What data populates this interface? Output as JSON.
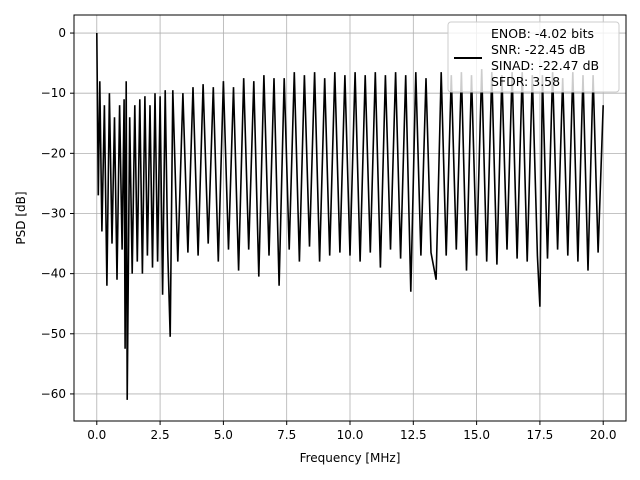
{
  "chart_data": {
    "type": "line",
    "xlabel": "Frequency [MHz]",
    "ylabel": "PSD [dB]",
    "xlim": [
      -0.9,
      20.9
    ],
    "ylim": [
      -64.5,
      3.0
    ],
    "xticks": [
      0.0,
      2.5,
      5.0,
      7.5,
      10.0,
      12.5,
      15.0,
      17.5,
      20.0
    ],
    "xtick_labels": [
      "0.0",
      "2.5",
      "5.0",
      "7.5",
      "10.0",
      "12.5",
      "15.0",
      "17.5",
      "20.0"
    ],
    "yticks": [
      0,
      -10,
      -20,
      -30,
      -40,
      -50,
      -60
    ],
    "ytick_labels": [
      "0",
      "−10",
      "−20",
      "−30",
      "−40",
      "−50",
      "−60"
    ],
    "grid": true,
    "legend_position": "top-right",
    "legend_lines": [
      "ENOB: -4.02 bits",
      "SNR: -22.45 dB",
      "SINAD: -22.47 dB",
      "SFDR: 3.58"
    ],
    "series": [
      {
        "color": "#000000",
        "x": [
          0.0,
          0.06,
          0.12,
          0.2,
          0.3,
          0.4,
          0.5,
          0.6,
          0.7,
          0.8,
          0.9,
          1.0,
          1.08,
          1.12,
          1.16,
          1.2,
          1.3,
          1.4,
          1.5,
          1.6,
          1.7,
          1.8,
          1.9,
          2.0,
          2.1,
          2.2,
          2.3,
          2.4,
          2.5,
          2.6,
          2.7,
          2.8,
          2.9,
          3.0,
          3.2,
          3.4,
          3.6,
          3.8,
          4.0,
          4.2,
          4.4,
          4.6,
          4.8,
          5.0,
          5.2,
          5.4,
          5.6,
          5.8,
          6.0,
          6.2,
          6.4,
          6.6,
          6.8,
          7.0,
          7.2,
          7.4,
          7.6,
          7.8,
          8.0,
          8.2,
          8.4,
          8.6,
          8.8,
          9.0,
          9.2,
          9.4,
          9.6,
          9.8,
          10.0,
          10.2,
          10.4,
          10.6,
          10.8,
          11.0,
          11.2,
          11.4,
          11.6,
          11.8,
          12.0,
          12.2,
          12.4,
          12.6,
          12.8,
          13.0,
          13.2,
          13.4,
          13.6,
          13.8,
          14.0,
          14.2,
          14.4,
          14.6,
          14.8,
          15.0,
          15.2,
          15.4,
          15.6,
          15.8,
          16.0,
          16.2,
          16.4,
          16.6,
          16.8,
          17.0,
          17.2,
          17.4,
          17.5,
          17.6,
          17.8,
          18.0,
          18.2,
          18.4,
          18.6,
          18.8,
          19.0,
          19.2,
          19.4,
          19.6,
          19.8,
          20.0
        ],
        "y": [
          0.0,
          -27.0,
          -8.0,
          -33.0,
          -12.0,
          -42.0,
          -10.0,
          -35.0,
          -14.0,
          -41.0,
          -12.0,
          -36.0,
          -11.0,
          -52.5,
          -8.0,
          -61.0,
          -14.0,
          -40.0,
          -12.0,
          -38.0,
          -11.0,
          -40.0,
          -10.5,
          -37.0,
          -12.0,
          -39.0,
          -10.0,
          -38.0,
          -10.5,
          -43.5,
          -9.5,
          -36.0,
          -50.5,
          -9.5,
          -38.0,
          -10.0,
          -36.5,
          -9.0,
          -37.0,
          -8.5,
          -35.0,
          -9.0,
          -38.0,
          -8.0,
          -36.0,
          -9.0,
          -39.5,
          -7.5,
          -36.0,
          -8.0,
          -40.5,
          -7.0,
          -37.0,
          -7.5,
          -42.0,
          -7.5,
          -36.0,
          -6.5,
          -38.0,
          -7.0,
          -35.5,
          -6.5,
          -38.0,
          -7.5,
          -37.0,
          -6.5,
          -36.5,
          -7.0,
          -37.0,
          -6.5,
          -38.0,
          -7.0,
          -36.5,
          -6.5,
          -39.0,
          -7.0,
          -36.0,
          -6.5,
          -37.5,
          -7.0,
          -43.0,
          -6.5,
          -37.0,
          -7.5,
          -36.5,
          -41.0,
          -6.5,
          -37.0,
          -7.0,
          -36.0,
          -6.5,
          -39.5,
          -7.0,
          -37.0,
          -6.0,
          -38.0,
          -6.5,
          -38.5,
          -7.0,
          -36.0,
          -6.5,
          -37.5,
          -6.5,
          -38.0,
          -7.0,
          -37.0,
          -45.5,
          -7.0,
          -37.5,
          -6.5,
          -36.0,
          -7.5,
          -37.0,
          -6.5,
          -38.0,
          -7.0,
          -39.5,
          -7.0,
          -36.5,
          -12.0
        ]
      }
    ]
  }
}
